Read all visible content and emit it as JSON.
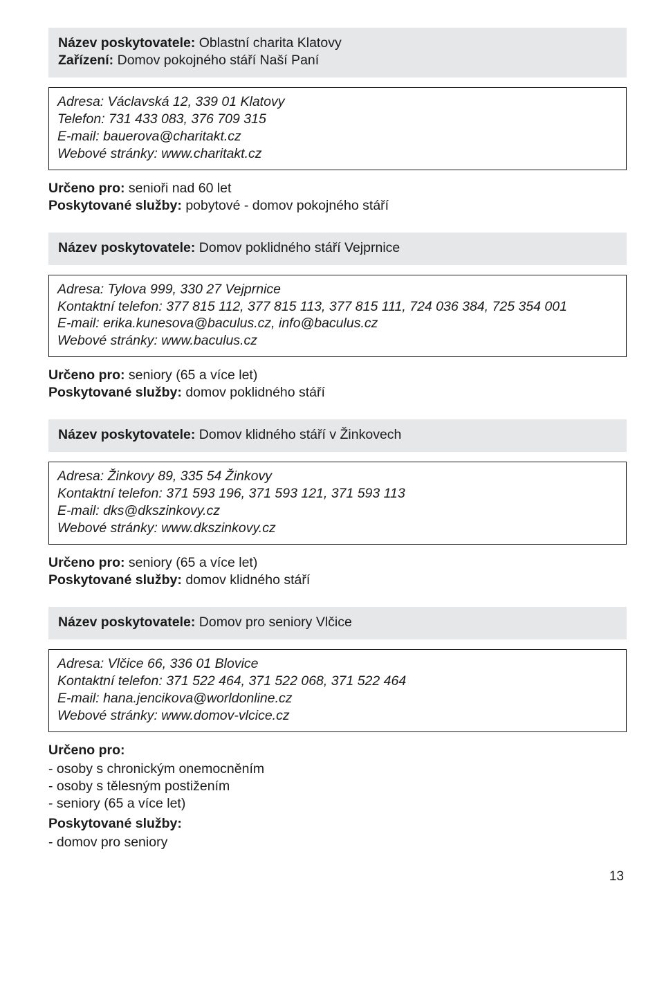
{
  "colors": {
    "banner_bg": "#e6e7e8",
    "text": "#1a1a1a",
    "border": "#1a1a1a",
    "page_bg": "#ffffff"
  },
  "typography": {
    "body_fontsize_pt": 15,
    "bold_weight": 700,
    "font_family": "Myriad Pro / Segoe UI / Helvetica"
  },
  "entries": [
    {
      "header": [
        {
          "label": "Název poskytovatele:",
          "value": " Oblastní charita Klatovy"
        },
        {
          "label": "Zařízení:",
          "value": " Domov pokojného stáří Naší Paní"
        }
      ],
      "contact": [
        "Adresa: Václavská 12, 339 01 Klatovy",
        "Telefon: 731 433 083, 376 709 315",
        "E-mail: bauerova@charitakt.cz",
        "Webové stránky: www.charitakt.cz"
      ],
      "info": [
        {
          "label": "Určeno pro:",
          "value": " senioři nad 60 let"
        },
        {
          "label": "Poskytované služby:",
          "value": "  pobytové - domov pokojného stáří"
        }
      ]
    },
    {
      "header": [
        {
          "label": "Název poskytovatele:",
          "value": " Domov poklidného stáří Vejprnice"
        }
      ],
      "contact": [
        "Adresa: Tylova 999, 330 27 Vejprnice",
        "Kontaktní telefon: 377 815 112, 377 815 113, 377 815 111, 724 036 384, 725 354 001",
        "E-mail: erika.kunesova@baculus.cz, info@baculus.cz",
        "Webové stránky: www.baculus.cz"
      ],
      "info": [
        {
          "label": "Určeno pro:",
          "value": "  seniory (65 a více let)"
        },
        {
          "label": "Poskytované služby:",
          "value": " domov poklidného stáří"
        }
      ]
    },
    {
      "header": [
        {
          "label": "Název poskytovatele:",
          "value": " Domov klidného stáří v Žinkovech"
        }
      ],
      "contact": [
        "Adresa: Žinkovy 89, 335 54 Žinkovy",
        "Kontaktní telefon: 371 593 196, 371 593 121, 371 593 113",
        "E-mail: dks@dkszinkovy.cz",
        "Webové stránky: www.dkszinkovy.cz"
      ],
      "info": [
        {
          "label": "Určeno pro:",
          "value": " seniory (65 a více let)"
        },
        {
          "label": "Poskytované služby:",
          "value": "  domov klidného stáří"
        }
      ]
    },
    {
      "header": [
        {
          "label": "Název poskytovatele:",
          "value": " Domov pro seniory Vlčice"
        }
      ],
      "contact": [
        "Adresa: Vlčice 66, 336 01 Blovice",
        "Kontaktní telefon: 371 522 464, 371 522 068, 371 522 464",
        "E-mail: hana.jencikova@worldonline.cz",
        "Webové stránky: www.domov-vlcice.cz"
      ],
      "info_complex": {
        "urceno_label": "Určeno pro:",
        "urceno_items": [
          "- osoby s chronickým onemocněním",
          "- osoby s tělesným postižením",
          "- seniory (65 a více let)"
        ],
        "sluzby_label": "Poskytované služby:",
        "sluzby_items": [
          "- domov pro seniory"
        ]
      }
    }
  ],
  "page_number": "13"
}
